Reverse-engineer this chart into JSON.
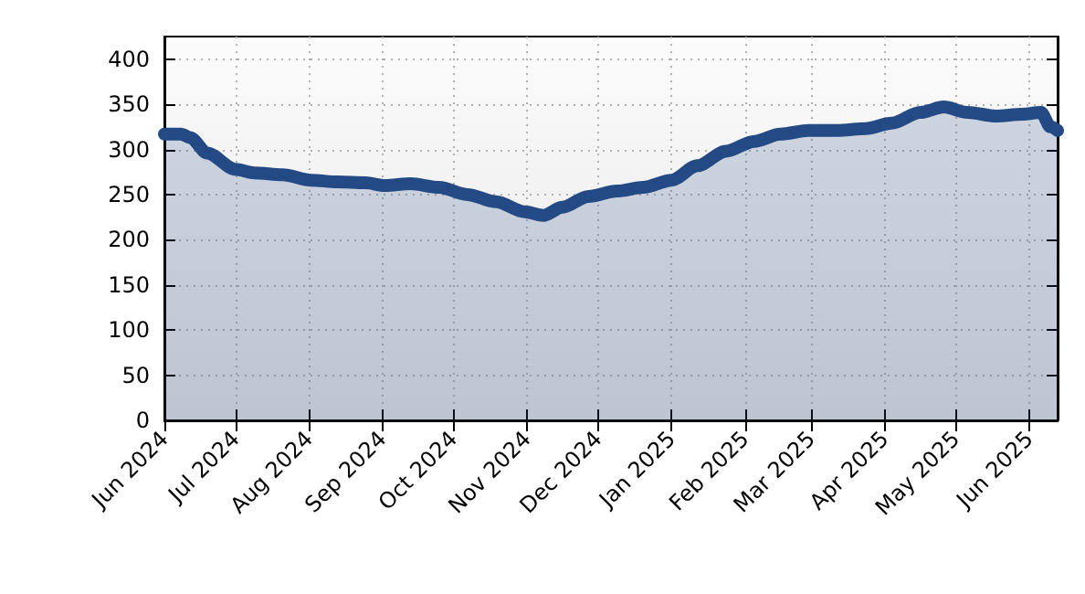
{
  "chart_data": {
    "type": "area",
    "line_style": "solid",
    "grid": true,
    "x": [
      "2024-06-01",
      "2024-06-08",
      "2024-06-12",
      "2024-06-19",
      "2024-07-01",
      "2024-07-09",
      "2024-07-21",
      "2024-08-02",
      "2024-08-13",
      "2024-08-25",
      "2024-09-02",
      "2024-09-13",
      "2024-09-25",
      "2024-10-07",
      "2024-10-19",
      "2024-10-31",
      "2024-11-08",
      "2024-11-16",
      "2024-11-27",
      "2024-12-09",
      "2024-12-20",
      "2025-01-01",
      "2025-01-12",
      "2025-01-24",
      "2025-02-05",
      "2025-02-16",
      "2025-02-28",
      "2025-03-12",
      "2025-03-24",
      "2025-04-04",
      "2025-04-16",
      "2025-04-26",
      "2025-05-06",
      "2025-05-18",
      "2025-05-29",
      "2025-06-06",
      "2025-06-10",
      "2025-06-13"
    ],
    "series": [
      {
        "color": "#234a84",
        "values": [
          317,
          317,
          313,
          296,
          278,
          274,
          272,
          266,
          264,
          263,
          260,
          262,
          258,
          250,
          242,
          231,
          227,
          236,
          248,
          254,
          258,
          266,
          282,
          298,
          309,
          317,
          321,
          321,
          323,
          329,
          341,
          347,
          341,
          337,
          339,
          341,
          325,
          321
        ]
      }
    ],
    "xlim": [
      "2024-06-01",
      "2025-06-13"
    ],
    "xticks": [
      {
        "value": "2024-06-01",
        "label": "Jun 2024"
      },
      {
        "value": "2024-07-01",
        "label": "Jul 2024"
      },
      {
        "value": "2024-08-01",
        "label": "Aug 2024"
      },
      {
        "value": "2024-09-01",
        "label": "Sep 2024"
      },
      {
        "value": "2024-10-01",
        "label": "Oct 2024"
      },
      {
        "value": "2024-11-01",
        "label": "Nov 2024"
      },
      {
        "value": "2024-12-01",
        "label": "Dec 2024"
      },
      {
        "value": "2025-01-01",
        "label": "Jan 2025"
      },
      {
        "value": "2025-02-01",
        "label": "Feb 2025"
      },
      {
        "value": "2025-03-01",
        "label": "Mar 2025"
      },
      {
        "value": "2025-04-01",
        "label": "Apr 2025"
      },
      {
        "value": "2025-05-01",
        "label": "May 2025"
      },
      {
        "value": "2025-06-01",
        "label": "Jun 2025"
      }
    ],
    "ylim": [
      0,
      425
    ],
    "yticks": [
      0,
      50,
      100,
      150,
      200,
      250,
      300,
      350,
      400
    ]
  }
}
